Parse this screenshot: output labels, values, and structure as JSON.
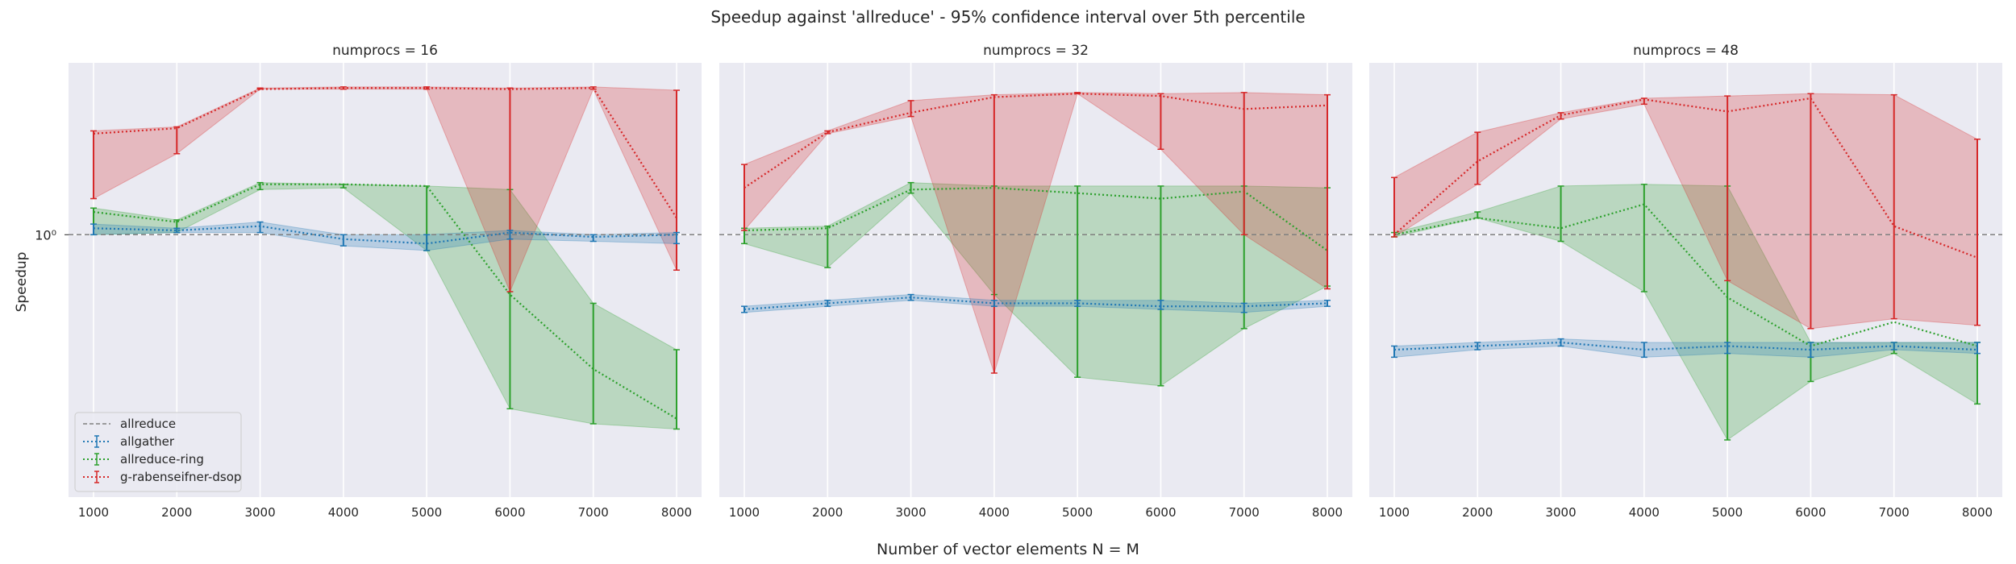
{
  "figure": {
    "title": "Speedup against 'allreduce' - 95% confidence interval over 5th percentile",
    "xlabel": "Number of vector elements N = M",
    "ylabel": "Speedup",
    "y_tick_label": "10⁰"
  },
  "legend": {
    "placement": "lower-left of first panel",
    "items": [
      {
        "label": "allreduce",
        "color": "#808080",
        "style": "dashed"
      },
      {
        "label": "allgather",
        "color": "#1f77b4",
        "style": "dotted"
      },
      {
        "label": "allreduce-ring",
        "color": "#2ca02c",
        "style": "dotted"
      },
      {
        "label": "g-rabenseifner-dsop",
        "color": "#d62728",
        "style": "dotted"
      }
    ]
  },
  "colors": {
    "panel_bg": "#eaeaf2",
    "grid": "#ffffff",
    "allgather": "#1f77b4",
    "allreduce-ring": "#2ca02c",
    "g-rabenseifner-dsop": "#d62728",
    "allreduce": "#808080"
  },
  "chart_data": {
    "type": "line",
    "y_scale": "log",
    "ylim": [
      0.3,
      2.2
    ],
    "xlim": [
      700,
      8300
    ],
    "x": [
      1000,
      2000,
      3000,
      4000,
      5000,
      6000,
      7000,
      8000
    ],
    "x_tick_labels": [
      "1000",
      "2000",
      "3000",
      "4000",
      "5000",
      "6000",
      "7000",
      "8000"
    ],
    "reference_line": {
      "name": "allreduce",
      "y": 1.0
    },
    "grid": true,
    "panels": [
      {
        "title": "numprocs = 16",
        "series": [
          {
            "name": "allgather",
            "y": [
              1.03,
              1.02,
              1.04,
              0.98,
              0.96,
              1.01,
              0.99,
              1.0
            ],
            "lo": [
              1.0,
              1.01,
              1.01,
              0.95,
              0.93,
              0.98,
              0.97,
              0.96
            ],
            "hi": [
              1.05,
              1.03,
              1.06,
              1.0,
              1.0,
              1.02,
              1.0,
              1.01
            ]
          },
          {
            "name": "allreduce-ring",
            "y": [
              1.11,
              1.06,
              1.26,
              1.26,
              1.25,
              0.76,
              0.54,
              0.43
            ],
            "lo": [
              1.0,
              1.01,
              1.23,
              1.24,
              0.93,
              0.45,
              0.42,
              0.41
            ],
            "hi": [
              1.13,
              1.07,
              1.27,
              1.26,
              1.25,
              1.23,
              0.73,
              0.59
            ]
          },
          {
            "name": "g-rabenseifner-dsop",
            "y": [
              1.59,
              1.63,
              1.95,
              1.96,
              1.96,
              1.95,
              1.96,
              1.08
            ],
            "lo": [
              1.18,
              1.45,
              1.95,
              1.95,
              1.95,
              0.77,
              1.95,
              0.85
            ],
            "hi": [
              1.61,
              1.64,
              1.96,
              1.97,
              1.97,
              1.96,
              1.97,
              1.94
            ]
          }
        ]
      },
      {
        "title": "numprocs = 32",
        "series": [
          {
            "name": "allgather",
            "y": [
              0.71,
              0.73,
              0.75,
              0.73,
              0.73,
              0.72,
              0.72,
              0.73
            ],
            "lo": [
              0.7,
              0.72,
              0.74,
              0.72,
              0.72,
              0.71,
              0.7,
              0.72
            ],
            "hi": [
              0.72,
              0.74,
              0.76,
              0.74,
              0.74,
              0.74,
              0.73,
              0.74
            ]
          },
          {
            "name": "allreduce-ring",
            "y": [
              1.02,
              1.03,
              1.23,
              1.24,
              1.21,
              1.18,
              1.22,
              0.93
            ],
            "lo": [
              0.96,
              0.86,
              1.21,
              0.76,
              0.52,
              0.5,
              0.65,
              0.79
            ],
            "hi": [
              1.03,
              1.04,
              1.27,
              1.25,
              1.25,
              1.25,
              1.25,
              1.24
            ]
          },
          {
            "name": "g-rabenseifner-dsop",
            "y": [
              1.24,
              1.6,
              1.75,
              1.88,
              1.91,
              1.89,
              1.78,
              1.81
            ],
            "lo": [
              1.02,
              1.59,
              1.72,
              0.53,
              1.91,
              1.48,
              1.0,
              0.78
            ],
            "hi": [
              1.38,
              1.61,
              1.85,
              1.9,
              1.92,
              1.91,
              1.92,
              1.9
            ]
          }
        ]
      },
      {
        "title": "numprocs = 48",
        "series": [
          {
            "name": "allgather",
            "y": [
              0.59,
              0.6,
              0.61,
              0.59,
              0.6,
              0.59,
              0.6,
              0.59
            ],
            "lo": [
              0.57,
              0.59,
              0.6,
              0.57,
              0.58,
              0.57,
              0.59,
              0.58
            ],
            "hi": [
              0.6,
              0.61,
              0.62,
              0.61,
              0.61,
              0.61,
              0.61,
              0.61
            ]
          },
          {
            "name": "allreduce-ring",
            "y": [
              1.0,
              1.08,
              1.03,
              1.15,
              0.75,
              0.6,
              0.67,
              0.6
            ],
            "lo": [
              0.99,
              1.08,
              0.97,
              0.77,
              0.39,
              0.51,
              0.58,
              0.46
            ],
            "hi": [
              1.01,
              1.11,
              1.25,
              1.26,
              1.25,
              0.61,
              0.61,
              0.61
            ]
          },
          {
            "name": "g-rabenseifner-dsop",
            "y": [
              1.0,
              1.4,
              1.73,
              1.86,
              1.76,
              1.87,
              1.04,
              0.9
            ],
            "lo": [
              0.99,
              1.26,
              1.7,
              1.82,
              0.81,
              0.65,
              0.68,
              0.66
            ],
            "hi": [
              1.3,
              1.6,
              1.75,
              1.87,
              1.89,
              1.91,
              1.9,
              1.55
            ]
          }
        ]
      }
    ]
  }
}
